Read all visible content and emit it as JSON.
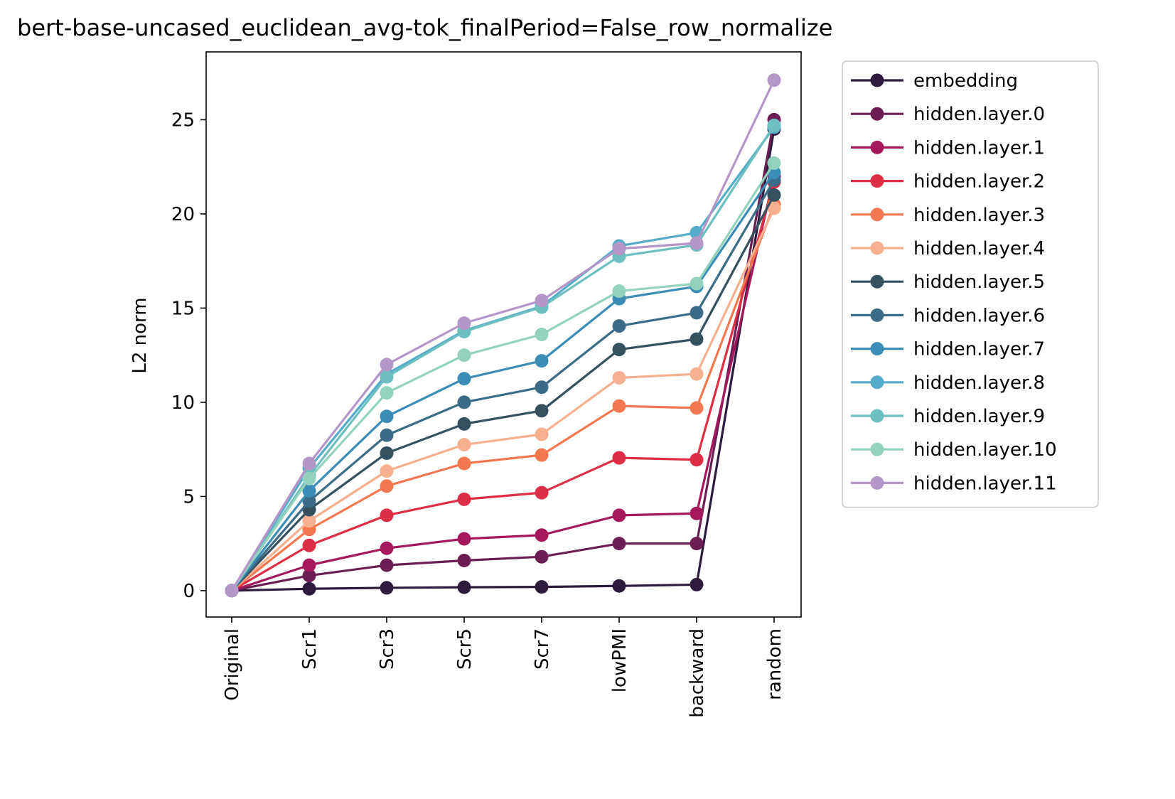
{
  "chart_data": {
    "type": "line",
    "title": "bert-base-uncased_euclidean_avg-tok_finalPeriod=False_row_normalize",
    "xlabel": "",
    "ylabel": "L2 norm",
    "categories": [
      "Original",
      "Scr1",
      "Scr3",
      "Scr5",
      "Scr7",
      "lowPMI",
      "backward",
      "random"
    ],
    "ylim": [
      -1.4,
      28.6
    ],
    "yticks": [
      0,
      5,
      10,
      15,
      20,
      25
    ],
    "grid": false,
    "legend_position": "outside-right",
    "series": [
      {
        "name": "embedding",
        "color": "#2d1b3d",
        "values": [
          0,
          0.1,
          0.15,
          0.18,
          0.2,
          0.25,
          0.32,
          24.5
        ]
      },
      {
        "name": "hidden.layer.0",
        "color": "#6a1e52",
        "values": [
          0,
          0.8,
          1.35,
          1.6,
          1.8,
          2.5,
          2.5,
          25.0
        ]
      },
      {
        "name": "hidden.layer.1",
        "color": "#a5195c",
        "values": [
          0,
          1.35,
          2.25,
          2.75,
          2.95,
          4.0,
          4.1,
          22.0
        ]
      },
      {
        "name": "hidden.layer.2",
        "color": "#de2e45",
        "values": [
          0,
          2.4,
          4.0,
          4.85,
          5.2,
          7.05,
          6.95,
          21.7
        ]
      },
      {
        "name": "hidden.layer.3",
        "color": "#f3774f",
        "values": [
          0,
          3.25,
          5.55,
          6.75,
          7.2,
          9.8,
          9.7,
          20.5
        ]
      },
      {
        "name": "hidden.layer.4",
        "color": "#f6b08f",
        "values": [
          0,
          3.7,
          6.35,
          7.75,
          8.3,
          11.3,
          11.5,
          20.3
        ]
      },
      {
        "name": "hidden.layer.5",
        "color": "#35505e",
        "values": [
          0,
          4.3,
          7.3,
          8.85,
          9.55,
          12.8,
          13.35,
          21.0
        ]
      },
      {
        "name": "hidden.layer.6",
        "color": "#3b6b87",
        "values": [
          0,
          4.75,
          8.25,
          10.0,
          10.8,
          14.05,
          14.75,
          21.8
        ]
      },
      {
        "name": "hidden.layer.7",
        "color": "#3b8db5",
        "values": [
          0,
          5.3,
          9.25,
          11.25,
          12.2,
          15.5,
          16.15,
          22.2
        ]
      },
      {
        "name": "hidden.layer.8",
        "color": "#55acc8",
        "values": [
          0,
          6.5,
          11.5,
          13.8,
          15.1,
          18.3,
          19.0,
          24.6
        ]
      },
      {
        "name": "hidden.layer.9",
        "color": "#6dbfc0",
        "values": [
          0,
          6.1,
          11.35,
          13.75,
          15.05,
          17.75,
          18.35,
          24.7
        ]
      },
      {
        "name": "hidden.layer.10",
        "color": "#94d2bd",
        "values": [
          0,
          5.95,
          10.5,
          12.5,
          13.6,
          15.9,
          16.3,
          22.7
        ]
      },
      {
        "name": "hidden.layer.11",
        "color": "#b596c9",
        "values": [
          0,
          6.75,
          12.0,
          14.2,
          15.4,
          18.15,
          18.45,
          27.1
        ]
      }
    ]
  }
}
